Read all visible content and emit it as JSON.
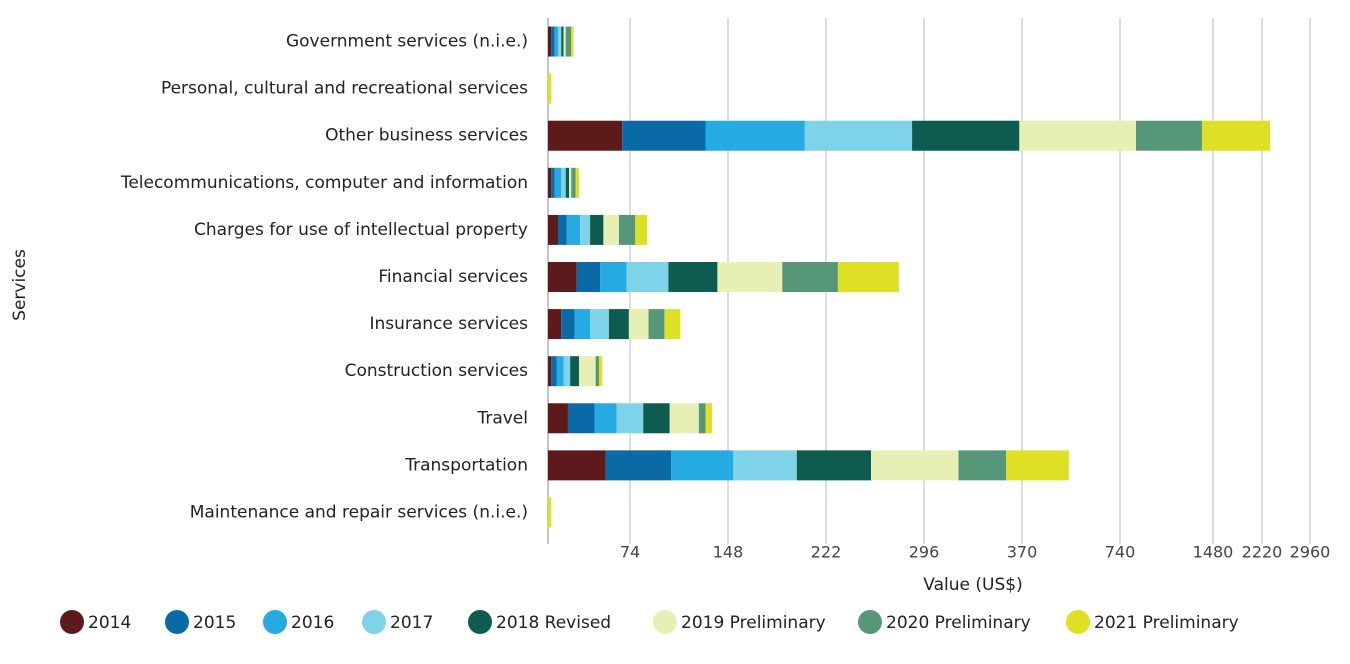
{
  "chart_data": {
    "type": "stacked-bar-horizontal",
    "x_label": "Value (US$)",
    "y_label": "Services",
    "categories": [
      "Government services (n.i.e.)",
      "Personal, cultural and recreational services",
      "Other business services",
      "Telecommunications, computer and information",
      "Charges for use of intellectual property",
      "Financial services",
      "Insurance services",
      "Construction services",
      "Travel",
      "Transportation",
      "Maintenance and repair services (n.i.e.)"
    ],
    "series": [
      {
        "name": "2014",
        "color": "#5c1a1b",
        "values": [
          3,
          0,
          67,
          3,
          9,
          26,
          12,
          3,
          18,
          52,
          0
        ]
      },
      {
        "name": "2015",
        "color": "#0a6aa8",
        "values": [
          3,
          0,
          64,
          3,
          8,
          21,
          12,
          5,
          24,
          53,
          0
        ]
      },
      {
        "name": "2016",
        "color": "#25aae1",
        "values": [
          3,
          0,
          75,
          6,
          12,
          24,
          14,
          6,
          20,
          47,
          0
        ]
      },
      {
        "name": "2017",
        "color": "#7fd3e8",
        "values": [
          3,
          0,
          81,
          4,
          9,
          32,
          17,
          6,
          22,
          48,
          0
        ]
      },
      {
        "name": "2018 Revised",
        "color": "#0d5c4f",
        "values": [
          2,
          0,
          81,
          3,
          12,
          37,
          18,
          8,
          20,
          56,
          0
        ]
      },
      {
        "name": "2019 Preliminary",
        "color": "#e6f0b4",
        "values": [
          2,
          0,
          499,
          2,
          14,
          49,
          15,
          15,
          22,
          66,
          0
        ]
      },
      {
        "name": "2020 Preliminary",
        "color": "#56977a",
        "values": [
          5,
          0,
          525,
          4,
          14,
          42,
          12,
          3,
          5,
          36,
          0
        ]
      },
      {
        "name": "2021 Preliminary",
        "color": "#dde024",
        "values": [
          2,
          3,
          951,
          3,
          9,
          46,
          12,
          3,
          5,
          189,
          3
        ]
      }
    ],
    "xlim": [
      0,
      2960
    ],
    "xticks": [
      74,
      148,
      222,
      296,
      370,
      740,
      1480,
      2220,
      2960
    ],
    "grid": true
  }
}
